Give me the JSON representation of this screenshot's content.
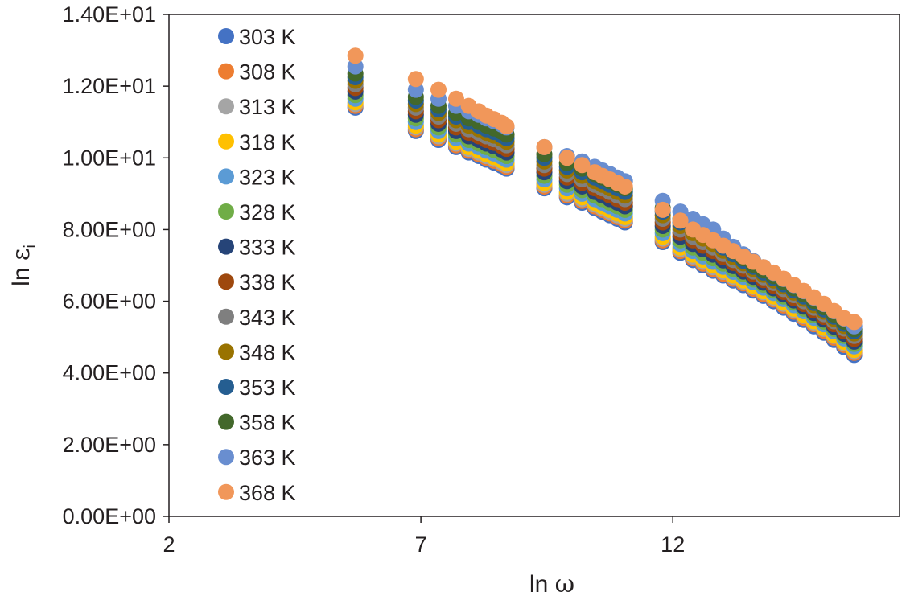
{
  "chart_data": {
    "type": "scatter",
    "title": "",
    "xlabel": {
      "prefix": "ln",
      "symbol": "ω"
    },
    "ylabel": {
      "prefix": "ln",
      "symbol": "ε",
      "subscript": "i"
    },
    "xlim": [
      2,
      16.5
    ],
    "ylim": [
      0,
      14
    ],
    "xticks": [
      {
        "value": 2,
        "label": "2"
      },
      {
        "value": 7,
        "label": "7"
      },
      {
        "value": 12,
        "label": "12"
      }
    ],
    "yticks": [
      {
        "value": 0,
        "label": "0.00E+00"
      },
      {
        "value": 2,
        "label": "2.00E+00"
      },
      {
        "value": 4,
        "label": "4.00E+00"
      },
      {
        "value": 6,
        "label": "6.00E+00"
      },
      {
        "value": 8,
        "label": "8.00E+00"
      },
      {
        "value": 10,
        "label": "1.00E+01"
      },
      {
        "value": 12,
        "label": "1.20E+01"
      },
      {
        "value": 14,
        "label": "1.40E+01"
      }
    ],
    "grid": false,
    "legend_position": "top-left",
    "x": [
      5.7,
      6.9,
      7.35,
      7.7,
      7.95,
      8.15,
      8.3,
      8.45,
      8.6,
      8.7,
      9.45,
      9.9,
      10.2,
      10.45,
      10.6,
      10.75,
      10.9,
      11.05,
      11.8,
      12.15,
      12.4,
      12.6,
      12.8,
      13.0,
      13.2,
      13.4,
      13.6,
      13.8,
      14.0,
      14.2,
      14.4,
      14.6,
      14.8,
      15.0,
      15.2,
      15.4,
      15.6
    ],
    "series": [
      {
        "name": "303 K",
        "color": "#4472c4",
        "values": [
          11.4,
          10.75,
          10.5,
          10.3,
          10.15,
          10.05,
          9.95,
          9.87,
          9.78,
          9.7,
          9.15,
          8.9,
          8.75,
          8.6,
          8.5,
          8.4,
          8.3,
          8.2,
          7.65,
          7.35,
          7.15,
          7.0,
          6.85,
          6.72,
          6.58,
          6.45,
          6.3,
          6.15,
          6.0,
          5.82,
          5.65,
          5.48,
          5.3,
          5.12,
          4.92,
          4.72,
          4.5
        ]
      },
      {
        "name": "308 K",
        "color": "#ed7d31",
        "values": [
          11.45,
          10.8,
          10.55,
          10.35,
          10.2,
          10.1,
          10.0,
          9.92,
          9.83,
          9.75,
          9.2,
          8.95,
          8.8,
          8.65,
          8.55,
          8.45,
          8.35,
          8.25,
          7.7,
          7.4,
          7.2,
          7.05,
          6.9,
          6.77,
          6.63,
          6.5,
          6.35,
          6.2,
          6.05,
          5.88,
          5.71,
          5.54,
          5.36,
          5.18,
          4.98,
          4.78,
          4.56
        ]
      },
      {
        "name": "313 K",
        "color": "#a5a5a5",
        "values": [
          11.5,
          10.85,
          10.6,
          10.4,
          10.25,
          10.15,
          10.05,
          9.97,
          9.88,
          9.8,
          9.25,
          9.0,
          8.85,
          8.7,
          8.6,
          8.5,
          8.4,
          8.3,
          7.75,
          7.45,
          7.25,
          7.1,
          6.95,
          6.82,
          6.68,
          6.55,
          6.4,
          6.25,
          6.1,
          5.93,
          5.76,
          5.59,
          5.41,
          5.23,
          5.03,
          4.83,
          4.61
        ]
      },
      {
        "name": "318 K",
        "color": "#ffc000",
        "values": [
          11.55,
          10.9,
          10.65,
          10.45,
          10.3,
          10.2,
          10.1,
          10.02,
          9.93,
          9.85,
          9.3,
          9.05,
          8.9,
          8.75,
          8.65,
          8.55,
          8.45,
          8.35,
          7.8,
          7.5,
          7.3,
          7.15,
          7.0,
          6.86,
          6.72,
          6.58,
          6.43,
          6.28,
          6.13,
          5.96,
          5.79,
          5.62,
          5.44,
          5.26,
          5.06,
          4.86,
          4.64
        ]
      },
      {
        "name": "323 K",
        "color": "#5b9bd5",
        "values": [
          11.65,
          11.0,
          10.75,
          10.55,
          10.4,
          10.3,
          10.2,
          10.12,
          10.03,
          9.95,
          9.4,
          9.15,
          9.0,
          8.85,
          8.75,
          8.65,
          8.55,
          8.45,
          7.9,
          7.6,
          7.4,
          7.25,
          7.1,
          6.96,
          6.82,
          6.68,
          6.53,
          6.38,
          6.23,
          6.06,
          5.89,
          5.72,
          5.54,
          5.36,
          5.16,
          4.96,
          4.74
        ]
      },
      {
        "name": "328 K",
        "color": "#70ad47",
        "values": [
          11.75,
          11.1,
          10.85,
          10.65,
          10.5,
          10.4,
          10.3,
          10.22,
          10.13,
          10.05,
          9.5,
          9.25,
          9.1,
          8.95,
          8.85,
          8.75,
          8.65,
          8.55,
          8.0,
          7.7,
          7.5,
          7.35,
          7.2,
          7.05,
          6.9,
          6.76,
          6.61,
          6.46,
          6.3,
          6.13,
          5.96,
          5.79,
          5.61,
          5.43,
          5.23,
          5.03,
          4.81
        ]
      },
      {
        "name": "333 K",
        "color": "#264478",
        "values": [
          11.85,
          11.2,
          10.95,
          10.75,
          10.6,
          10.5,
          10.4,
          10.32,
          10.23,
          10.15,
          9.6,
          9.35,
          9.2,
          9.05,
          8.95,
          8.85,
          8.75,
          8.65,
          8.1,
          7.8,
          7.6,
          7.45,
          7.3,
          7.14,
          6.98,
          6.83,
          6.68,
          6.52,
          6.36,
          6.19,
          6.02,
          5.85,
          5.67,
          5.49,
          5.29,
          5.09,
          4.87
        ]
      },
      {
        "name": "338 K",
        "color": "#9e480e",
        "values": [
          11.95,
          11.3,
          11.05,
          10.85,
          10.7,
          10.6,
          10.5,
          10.42,
          10.33,
          10.25,
          9.7,
          9.45,
          9.3,
          9.15,
          9.05,
          8.95,
          8.85,
          8.75,
          8.2,
          7.9,
          7.7,
          7.55,
          7.4,
          7.23,
          7.07,
          6.91,
          6.75,
          6.59,
          6.43,
          6.26,
          6.09,
          5.92,
          5.74,
          5.56,
          5.36,
          5.16,
          4.95
        ]
      },
      {
        "name": "343 K",
        "color": "#7f7f7f",
        "values": [
          12.05,
          11.4,
          11.15,
          10.95,
          10.8,
          10.7,
          10.6,
          10.52,
          10.43,
          10.35,
          9.8,
          9.55,
          9.4,
          9.25,
          9.15,
          9.05,
          8.95,
          8.85,
          8.3,
          8.0,
          7.8,
          7.65,
          7.5,
          7.32,
          7.15,
          6.99,
          6.83,
          6.67,
          6.51,
          6.34,
          6.17,
          6.0,
          5.82,
          5.64,
          5.44,
          5.24,
          5.03
        ]
      },
      {
        "name": "348 K",
        "color": "#997300",
        "values": [
          12.15,
          11.5,
          11.25,
          11.05,
          10.9,
          10.8,
          10.7,
          10.62,
          10.53,
          10.45,
          9.9,
          9.65,
          9.5,
          9.35,
          9.25,
          9.15,
          9.05,
          8.95,
          8.4,
          8.1,
          7.9,
          7.75,
          7.6,
          7.41,
          7.23,
          7.06,
          6.9,
          6.74,
          6.58,
          6.41,
          6.24,
          6.07,
          5.89,
          5.71,
          5.51,
          5.31,
          5.1
        ]
      },
      {
        "name": "353 K",
        "color": "#255e91",
        "values": [
          12.25,
          11.6,
          11.35,
          11.15,
          11.0,
          10.9,
          10.8,
          10.72,
          10.63,
          10.55,
          10.0,
          9.75,
          9.6,
          9.45,
          9.35,
          9.25,
          9.15,
          9.05,
          8.5,
          8.2,
          8.0,
          7.85,
          7.7,
          7.5,
          7.31,
          7.13,
          6.96,
          6.8,
          6.64,
          6.47,
          6.3,
          6.13,
          5.95,
          5.77,
          5.57,
          5.37,
          5.16
        ]
      },
      {
        "name": "358 K",
        "color": "#43682b",
        "values": [
          12.35,
          11.7,
          11.45,
          11.25,
          11.1,
          11.0,
          10.9,
          10.82,
          10.73,
          10.65,
          10.1,
          9.85,
          9.7,
          9.55,
          9.45,
          9.35,
          9.25,
          9.15,
          8.6,
          8.3,
          8.1,
          7.95,
          7.8,
          7.59,
          7.39,
          7.2,
          7.02,
          6.86,
          6.7,
          6.53,
          6.36,
          6.19,
          6.01,
          5.83,
          5.63,
          5.43,
          5.22
        ]
      },
      {
        "name": "363 K",
        "color": "#698ed0",
        "values": [
          12.55,
          11.9,
          11.65,
          11.45,
          11.3,
          11.2,
          11.1,
          11.02,
          10.93,
          10.85,
          10.3,
          10.05,
          9.9,
          9.75,
          9.65,
          9.55,
          9.45,
          9.35,
          8.8,
          8.5,
          8.3,
          8.15,
          8.0,
          7.75,
          7.52,
          7.31,
          7.12,
          6.95,
          6.79,
          6.62,
          6.45,
          6.28,
          6.1,
          5.92,
          5.72,
          5.52,
          5.3
        ]
      },
      {
        "name": "368 K",
        "color": "#f1975a",
        "values": [
          12.85,
          12.2,
          11.9,
          11.65,
          11.45,
          11.3,
          11.18,
          11.08,
          10.98,
          10.88,
          10.3,
          10.0,
          9.8,
          9.6,
          9.5,
          9.4,
          9.3,
          9.2,
          8.55,
          8.25,
          8.0,
          7.85,
          7.7,
          7.55,
          7.4,
          7.25,
          7.1,
          6.95,
          6.8,
          6.63,
          6.46,
          6.29,
          6.11,
          5.93,
          5.73,
          5.53,
          5.42
        ]
      }
    ]
  }
}
